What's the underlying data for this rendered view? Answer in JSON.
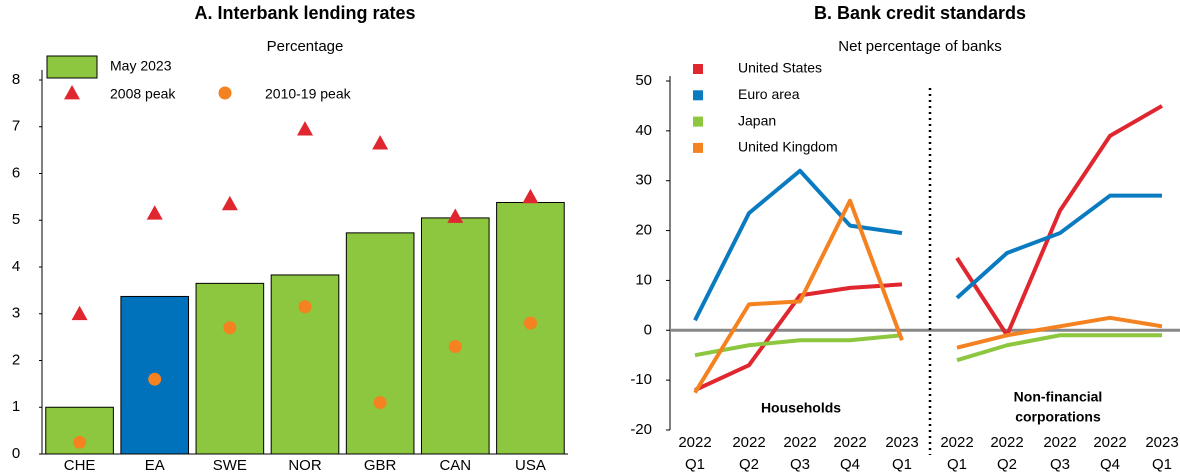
{
  "chart_data": [
    {
      "type": "bar",
      "title": "A. Interbank lending rates",
      "subtitle": "Percentage",
      "categories": [
        "CHE",
        "EA",
        "SWE",
        "NOR",
        "GBR",
        "CAN",
        "USA"
      ],
      "ylim": [
        0,
        8
      ],
      "yticks": [
        0,
        1,
        2,
        3,
        4,
        5,
        6,
        7,
        8
      ],
      "series": [
        {
          "name": "May 2023",
          "marker": "bar",
          "color": "#8dc63f",
          "colors": [
            "#8dc63f",
            "#0072bc",
            "#8dc63f",
            "#8dc63f",
            "#8dc63f",
            "#8dc63f",
            "#8dc63f"
          ],
          "values": [
            1.0,
            3.37,
            3.65,
            3.83,
            4.73,
            5.05,
            5.38
          ]
        },
        {
          "name": "2008 peak",
          "marker": "triangle",
          "color": "#e0262f",
          "values": [
            3.0,
            5.15,
            5.35,
            6.95,
            6.65,
            5.08,
            5.5
          ]
        },
        {
          "name": "2010-19 peak",
          "marker": "circle",
          "color": "#f58220",
          "values": [
            0.25,
            1.6,
            2.7,
            3.15,
            1.1,
            2.3,
            2.8
          ]
        }
      ]
    },
    {
      "type": "line",
      "title": "B. Bank credit standards",
      "subtitle": "Net percentage of banks",
      "categories": [
        "Q1",
        "Q2",
        "Q3",
        "Q4",
        "Q1",
        "Q1",
        "Q2",
        "Q3",
        "Q4",
        "Q1"
      ],
      "category_years": [
        "2022",
        "2022",
        "2022",
        "2022",
        "2023",
        "2022",
        "2022",
        "2022",
        "2022",
        "2023"
      ],
      "groups": [
        {
          "label": [
            "Households"
          ],
          "size": 5
        },
        {
          "label": [
            "Non-financial",
            "corporations"
          ],
          "size": 5
        }
      ],
      "ylim": [
        -20,
        50
      ],
      "yticks": [
        -20,
        -10,
        0,
        10,
        20,
        30,
        40,
        50
      ],
      "series": [
        {
          "name": "United States",
          "color": "#e0262f",
          "values": [
            -12,
            -7,
            7,
            8.5,
            9.2,
            14.5,
            -1,
            24,
            39,
            45
          ]
        },
        {
          "name": "Euro area",
          "color": "#0b7bc1",
          "values": [
            2,
            23.5,
            32,
            21,
            19.5,
            6.5,
            15.5,
            19.5,
            27,
            27
          ]
        },
        {
          "name": "Japan",
          "color": "#8dc63f",
          "values": [
            -5,
            -3,
            -2,
            -2,
            -1,
            -6,
            -3,
            -1,
            -1,
            -1
          ]
        },
        {
          "name": "United Kingdom",
          "color": "#f58220",
          "values": [
            -12.5,
            5.2,
            5.8,
            26,
            -2,
            -3.5,
            -1,
            0.8,
            2.5,
            0.8
          ]
        }
      ]
    }
  ]
}
